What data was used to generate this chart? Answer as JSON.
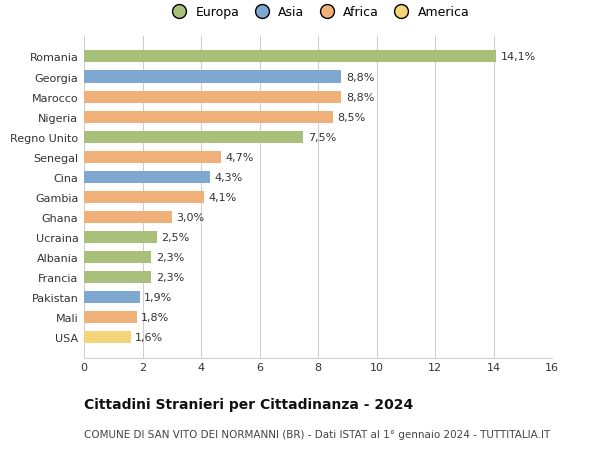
{
  "categories": [
    "Romania",
    "Georgia",
    "Marocco",
    "Nigeria",
    "Regno Unito",
    "Senegal",
    "Cina",
    "Gambia",
    "Ghana",
    "Ucraina",
    "Albania",
    "Francia",
    "Pakistan",
    "Mali",
    "USA"
  ],
  "values": [
    14.1,
    8.8,
    8.8,
    8.5,
    7.5,
    4.7,
    4.3,
    4.1,
    3.0,
    2.5,
    2.3,
    2.3,
    1.9,
    1.8,
    1.6
  ],
  "bar_colors": [
    "#a8c07a",
    "#7fa8d0",
    "#f0b07a",
    "#f0b07a",
    "#a8c07a",
    "#f0b07a",
    "#7fa8d0",
    "#f0b07a",
    "#f0b07a",
    "#a8c07a",
    "#a8c07a",
    "#a8c07a",
    "#7fa8d0",
    "#f0b07a",
    "#f5d57a"
  ],
  "labels": [
    "14,1%",
    "8,8%",
    "8,8%",
    "8,5%",
    "7,5%",
    "4,7%",
    "4,3%",
    "4,1%",
    "3,0%",
    "2,5%",
    "2,3%",
    "2,3%",
    "1,9%",
    "1,8%",
    "1,6%"
  ],
  "xlim": [
    0,
    16
  ],
  "xticks": [
    0,
    2,
    4,
    6,
    8,
    10,
    12,
    14,
    16
  ],
  "title": "Cittadini Stranieri per Cittadinanza - 2024",
  "subtitle": "COMUNE DI SAN VITO DEI NORMANNI (BR) - Dati ISTAT al 1° gennaio 2024 - TUTTITALIA.IT",
  "legend_labels": [
    "Europa",
    "Asia",
    "Africa",
    "America"
  ],
  "legend_colors": [
    "#a8c07a",
    "#7fa8d0",
    "#f0b07a",
    "#f5d57a"
  ],
  "background_color": "#ffffff",
  "grid_color": "#cccccc",
  "title_fontsize": 10,
  "subtitle_fontsize": 7.5,
  "label_fontsize": 8,
  "tick_fontsize": 8,
  "legend_fontsize": 9
}
